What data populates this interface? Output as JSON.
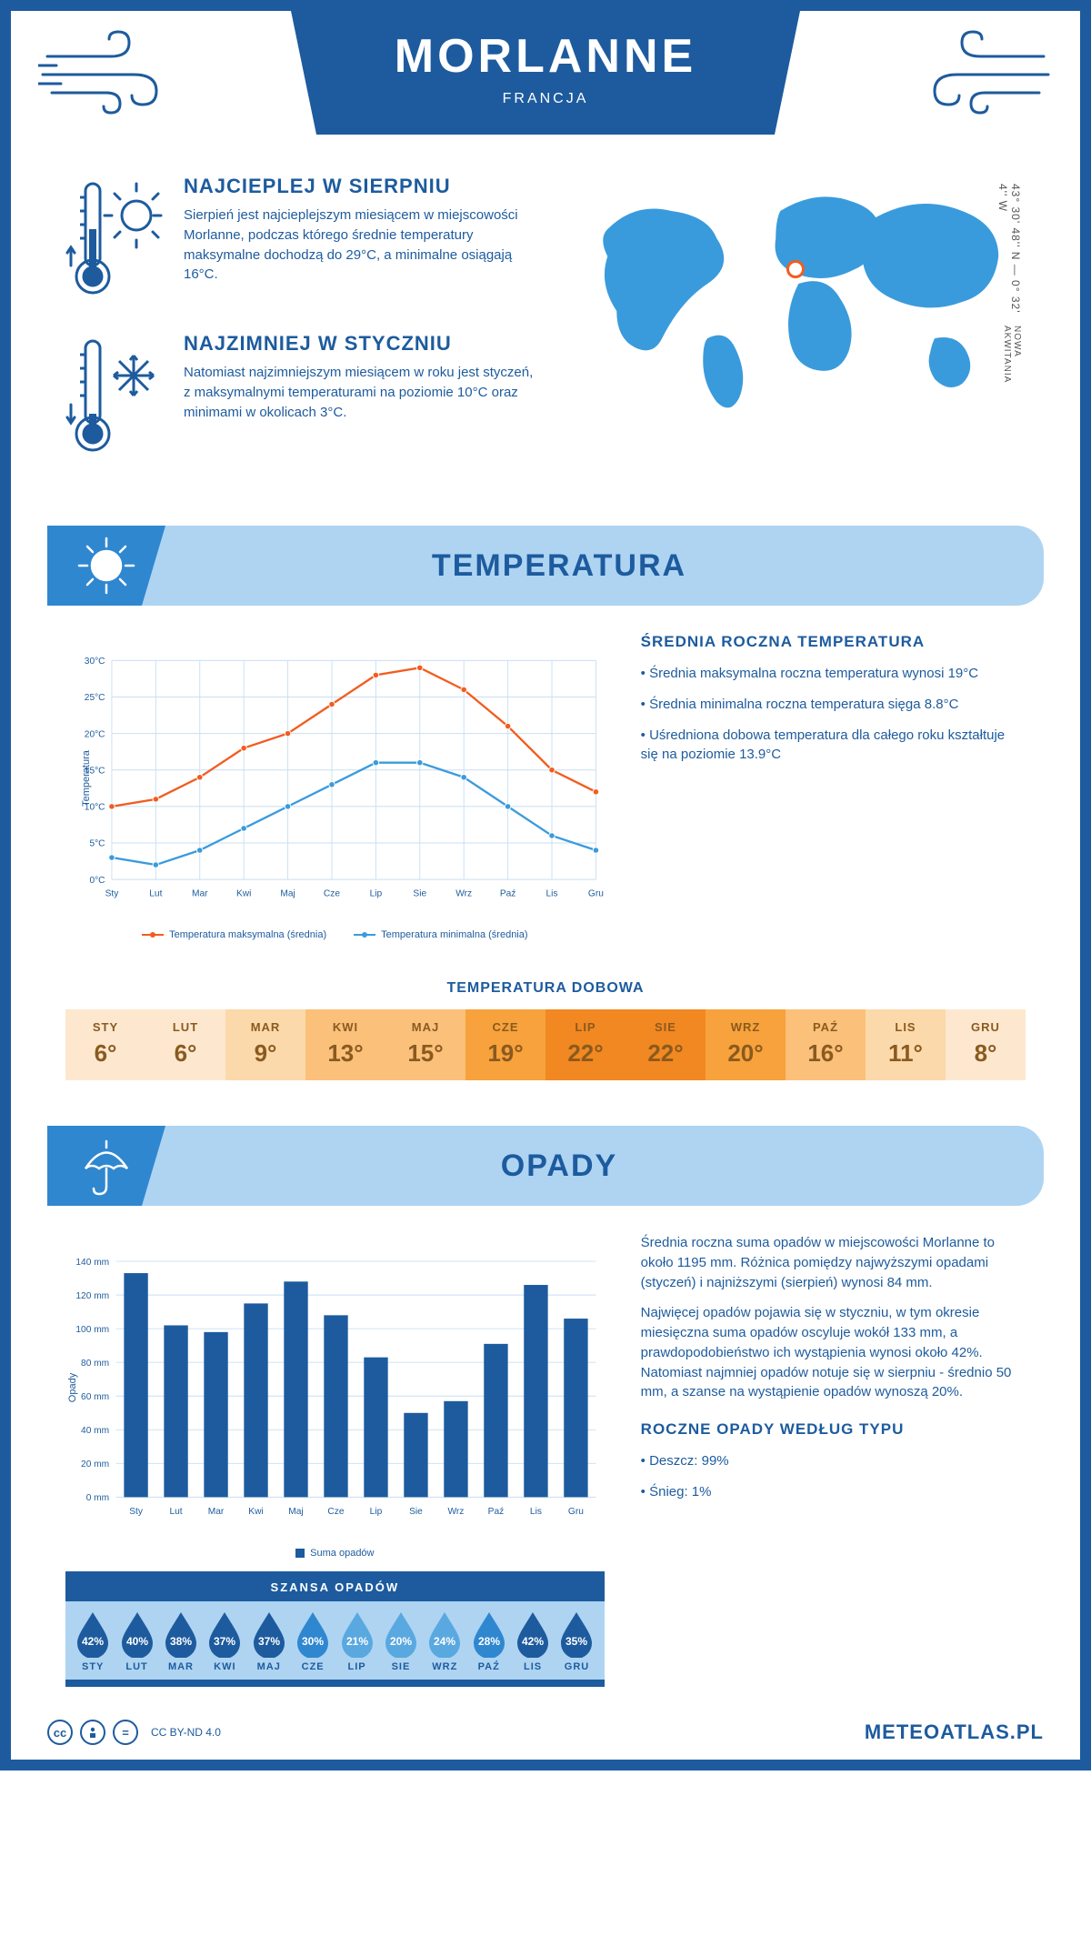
{
  "header": {
    "title": "MORLANNE",
    "subtitle": "FRANCJA"
  },
  "overview": {
    "warm": {
      "heading": "NAJCIEPLEJ W SIERPNIU",
      "text": "Sierpień jest najcieplejszym miesiącem w miejscowości Morlanne, podczas którego średnie temperatury maksymalne dochodzą do 29°C, a minimalne osiągają 16°C."
    },
    "cold": {
      "heading": "NAJZIMNIEJ W STYCZNIU",
      "text": "Natomiast najzimniejszym miesiącem w roku jest styczeń, z maksymalnymi temperaturami na poziomie 10°C oraz minimami w okolicach 3°C."
    },
    "coords": "43° 30' 48'' N — 0° 32' 4'' W",
    "region": "NOWA AKWITANIA"
  },
  "tempSection": {
    "banner": "TEMPERATURA",
    "yAxisLabel": "Temperatura",
    "months": [
      "Sty",
      "Lut",
      "Mar",
      "Kwi",
      "Maj",
      "Cze",
      "Lip",
      "Sie",
      "Wrz",
      "Paź",
      "Lis",
      "Gru"
    ],
    "max": [
      10,
      11,
      14,
      18,
      20,
      24,
      28,
      29,
      26,
      21,
      15,
      12
    ],
    "min": [
      3,
      2,
      4,
      7,
      10,
      13,
      16,
      16,
      14,
      10,
      6,
      4
    ],
    "yTicks": [
      "0°C",
      "5°C",
      "10°C",
      "15°C",
      "20°C",
      "25°C",
      "30°C"
    ],
    "yMax": 30,
    "legendMax": "Temperatura maksymalna (średnia)",
    "legendMin": "Temperatura minimalna (średnia)",
    "colors": {
      "max": "#f25c1f",
      "min": "#3a9bdc",
      "grid": "#c8dff3"
    },
    "infoTitle": "ŚREDNIA ROCZNA TEMPERATURA",
    "infoBullets": [
      "• Średnia maksymalna roczna temperatura wynosi 19°C",
      "• Średnia minimalna roczna temperatura sięga 8.8°C",
      "• Uśredniona dobowa temperatura dla całego roku kształtuje się na poziomie 13.9°C"
    ]
  },
  "dailyTemp": {
    "title": "TEMPERATURA DOBOWA",
    "months": [
      "STY",
      "LUT",
      "MAR",
      "KWI",
      "MAJ",
      "CZE",
      "LIP",
      "SIE",
      "WRZ",
      "PAŹ",
      "LIS",
      "GRU"
    ],
    "values": [
      "6°",
      "6°",
      "9°",
      "13°",
      "15°",
      "19°",
      "22°",
      "22°",
      "20°",
      "16°",
      "11°",
      "8°"
    ],
    "colors": [
      "#fde8cf",
      "#fde8cf",
      "#fcd9aa",
      "#fbc079",
      "#fbc079",
      "#f7a23c",
      "#f28821",
      "#f28821",
      "#f7a23c",
      "#fbc079",
      "#fcd9aa",
      "#fde8cf"
    ]
  },
  "precip": {
    "banner": "OPADY",
    "yAxisLabel": "Opady",
    "months": [
      "Sty",
      "Lut",
      "Mar",
      "Kwi",
      "Maj",
      "Cze",
      "Lip",
      "Sie",
      "Wrz",
      "Paź",
      "Lis",
      "Gru"
    ],
    "values": [
      133,
      102,
      98,
      115,
      128,
      108,
      83,
      50,
      57,
      91,
      126,
      106
    ],
    "yTicks": [
      "0 mm",
      "20 mm",
      "40 mm",
      "60 mm",
      "80 mm",
      "100 mm",
      "120 mm",
      "140 mm"
    ],
    "yMax": 140,
    "barColor": "#1d5b9e",
    "gridColor": "#c8dff3",
    "legend": "Suma opadów",
    "text1": "Średnia roczna suma opadów w miejscowości Morlanne to około 1195 mm. Różnica pomiędzy najwyższymi opadami (styczeń) i najniższymi (sierpień) wynosi 84 mm.",
    "text2": "Najwięcej opadów pojawia się w styczniu, w tym okresie miesięczna suma opadów oscyluje wokół 133 mm, a prawdopodobieństwo ich wystąpienia wynosi około 42%. Natomiast najmniej opadów notuje się w sierpniu - średnio 50 mm, a szanse na wystąpienie opadów wynoszą 20%.",
    "chanceTitle": "SZANSA OPADÓW",
    "chanceMonths": [
      "STY",
      "LUT",
      "MAR",
      "KWI",
      "MAJ",
      "CZE",
      "LIP",
      "SIE",
      "WRZ",
      "PAŹ",
      "LIS",
      "GRU"
    ],
    "chancePct": [
      "42%",
      "40%",
      "38%",
      "37%",
      "37%",
      "30%",
      "21%",
      "20%",
      "24%",
      "28%",
      "42%",
      "35%"
    ],
    "chanceColors": [
      "#1d5b9e",
      "#1d5b9e",
      "#1d5b9e",
      "#1d5b9e",
      "#1d5b9e",
      "#2f87d0",
      "#5aa8e0",
      "#5aa8e0",
      "#5aa8e0",
      "#2f87d0",
      "#1d5b9e",
      "#1d5b9e"
    ],
    "byTypeTitle": "ROCZNE OPADY WEDŁUG TYPU",
    "byType": [
      "• Deszcz: 99%",
      "• Śnieg: 1%"
    ]
  },
  "footer": {
    "license": "CC BY-ND 4.0",
    "site": "METEOATLAS.PL"
  }
}
